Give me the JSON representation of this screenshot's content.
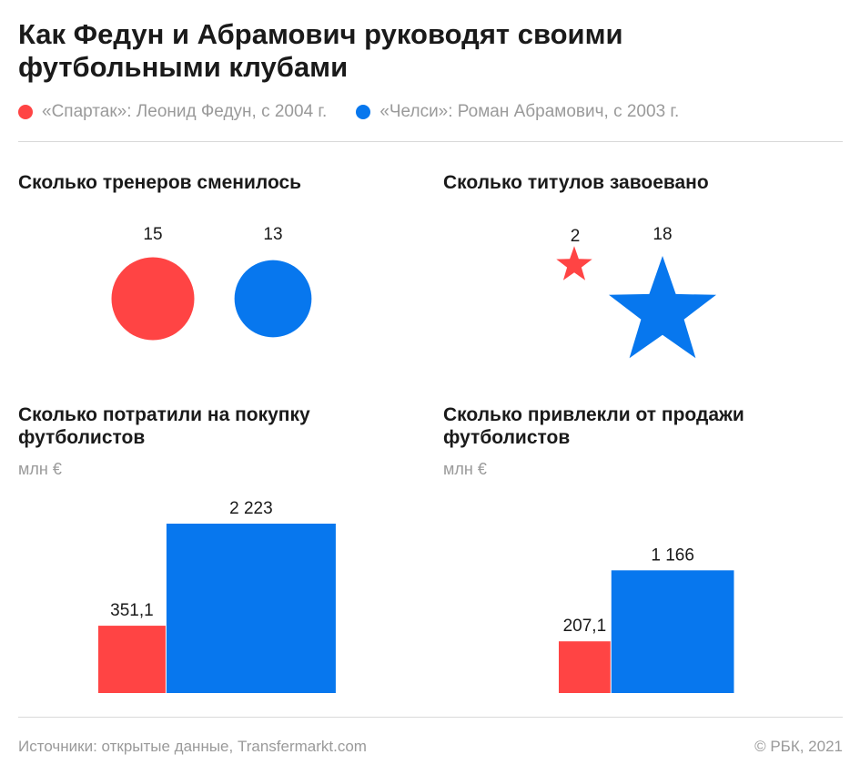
{
  "title": "Как Федун и Абрамович руководят своими футбольными клубами",
  "legend": [
    {
      "label": "«Спартак»: Леонид Федун, с 2004 г.",
      "color": "#ff4444"
    },
    {
      "label": "«Челси»: Роман Абрамович, с 2003 г.",
      "color": "#0777ee"
    }
  ],
  "sections": {
    "coaches": {
      "title": "Сколько тренеров сменилось"
    },
    "titles": {
      "title": "Сколько титулов завоевано"
    },
    "spent": {
      "title": "Сколько потратили на покупку футболистов",
      "unit": "млн €"
    },
    "sales": {
      "title": "Сколько привлекли от продажи футболистов",
      "unit": "млн €"
    }
  },
  "chart_data": [
    {
      "type": "circle-area",
      "title": "Сколько тренеров сменилось",
      "categories": [
        "«Спартак»",
        "«Челси»"
      ],
      "values": [
        15,
        13
      ],
      "labels": [
        "15",
        "13"
      ],
      "colors": [
        "#ff4444",
        "#0777ee"
      ]
    },
    {
      "type": "star-area",
      "title": "Сколько титулов завоевано",
      "categories": [
        "«Спартак»",
        "«Челси»"
      ],
      "values": [
        2,
        18
      ],
      "labels": [
        "2",
        "18"
      ],
      "colors": [
        "#ff4444",
        "#0777ee"
      ]
    },
    {
      "type": "square-area",
      "title": "Сколько потратили на покупку футболистов",
      "unit": "млн €",
      "categories": [
        "«Спартак»",
        "«Челси»"
      ],
      "values": [
        351.1,
        2223
      ],
      "labels": [
        "351,1",
        "2 223"
      ],
      "colors": [
        "#ff4444",
        "#0777ee"
      ]
    },
    {
      "type": "square-area",
      "title": "Сколько привлекли от продажи футболистов",
      "unit": "млн €",
      "categories": [
        "«Спартак»",
        "«Челси»"
      ],
      "values": [
        207.1,
        1166
      ],
      "labels": [
        "207,1",
        "1 166"
      ],
      "colors": [
        "#ff4444",
        "#0777ee"
      ]
    }
  ],
  "footer": {
    "source": "Источники: открытые данные, Transfermarkt.com",
    "copyright": "© РБК, 2021"
  }
}
